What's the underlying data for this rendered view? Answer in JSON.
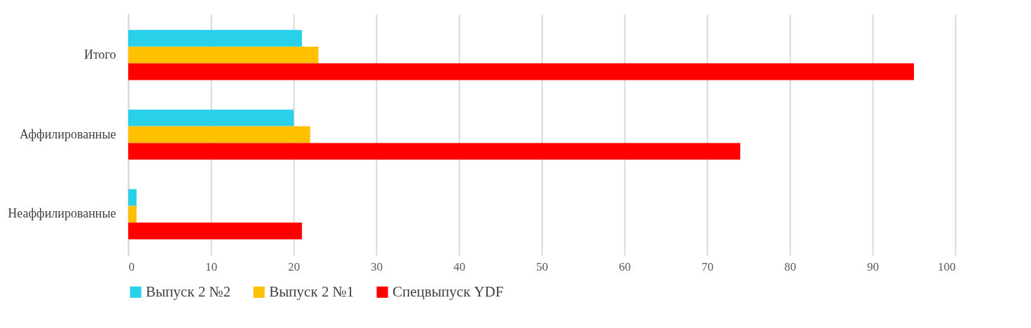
{
  "chart_data": {
    "type": "bar",
    "orientation": "horizontal",
    "categories": [
      "Итого",
      "Аффилированные",
      "Неаффилированные"
    ],
    "series": [
      {
        "name": "Выпуск 2 №2",
        "color": "#29d0ea",
        "values": [
          21,
          20,
          1
        ]
      },
      {
        "name": "Выпуск 2 №1",
        "color": "#ffc000",
        "values": [
          23,
          22,
          1
        ]
      },
      {
        "name": "Спецвыпуск YDF",
        "color": "#ff0000",
        "values": [
          95,
          74,
          21
        ]
      }
    ],
    "xlim": [
      0,
      100
    ],
    "xticks": [
      0,
      10,
      20,
      30,
      40,
      50,
      60,
      70,
      80,
      90,
      100
    ],
    "grid": "x",
    "legend": "bottom"
  }
}
